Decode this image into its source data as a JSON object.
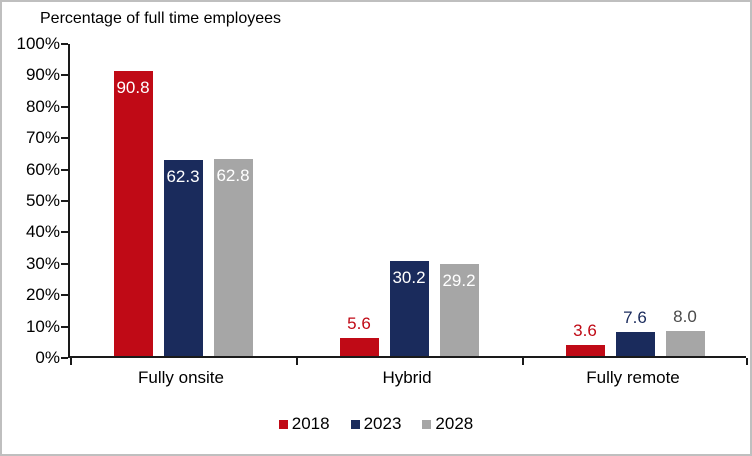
{
  "frame": {
    "background_color": "#ffffff",
    "border_color": "#bfbfbf"
  },
  "chart_data": {
    "type": "bar",
    "title": "Percentage of full time employees",
    "categories": [
      "Fully onsite",
      "Hybrid",
      "Fully remote"
    ],
    "series": [
      {
        "name": "2018",
        "color": "#c00a16",
        "outside_label_color": "#c00a16",
        "values": [
          90.8,
          5.6,
          3.6
        ]
      },
      {
        "name": "2023",
        "color": "#1a2b5c",
        "outside_label_color": "#1a2b5c",
        "values": [
          62.3,
          30.2,
          7.6
        ]
      },
      {
        "name": "2028",
        "color": "#a6a6a6",
        "outside_label_color": "#4a4a4a",
        "values": [
          62.8,
          29.2,
          8.0
        ]
      }
    ],
    "value_label_format": "one-decimal",
    "inside_label_color": "#ffffff",
    "inside_label_threshold": 15,
    "ylim": [
      0,
      100
    ],
    "yticks": [
      {
        "value": 100,
        "label": "100%"
      },
      {
        "value": 90,
        "label": "90%"
      },
      {
        "value": 80,
        "label": "80%"
      },
      {
        "value": 70,
        "label": "70%"
      },
      {
        "value": 60,
        "label": "60%"
      },
      {
        "value": 50,
        "label": "50%"
      },
      {
        "value": 40,
        "label": "40%"
      },
      {
        "value": 30,
        "label": "30%"
      },
      {
        "value": 20,
        "label": "20%"
      },
      {
        "value": 10,
        "label": "10%"
      },
      {
        "value": 0,
        "label": "0%"
      }
    ],
    "grid": false,
    "legend_position": "bottom",
    "axis_color": "#1a1a1a"
  }
}
